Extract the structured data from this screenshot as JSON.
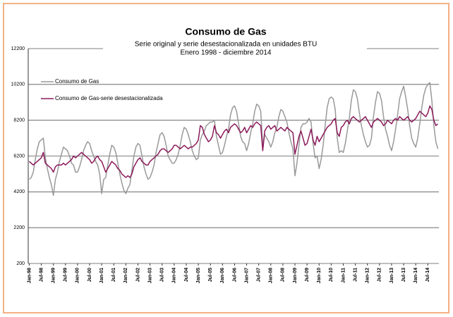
{
  "chart_data": {
    "type": "line",
    "title": "Consumo de Gas",
    "subtitle": [
      "Serie original y serie desestacionalizada en unidades BTU",
      "Enero 1998 - diciembre 2014"
    ],
    "categories": [
      "Jan-98",
      null,
      null,
      null,
      null,
      null,
      "Jul-98",
      null,
      null,
      null,
      null,
      null,
      "Jan-99",
      null,
      null,
      null,
      null,
      null,
      "Jul-99",
      null,
      null,
      null,
      null,
      null,
      "Jan-00",
      null,
      null,
      null,
      null,
      null,
      "Jul-00",
      null,
      null,
      null,
      null,
      null,
      "Jan-01",
      null,
      null,
      null,
      null,
      null,
      "Jul-01",
      null,
      null,
      null,
      null,
      null,
      "Jan-02",
      null,
      null,
      null,
      null,
      null,
      "Jul-02",
      null,
      null,
      null,
      null,
      null,
      "Jan-03",
      null,
      null,
      null,
      null,
      null,
      "Jul-03",
      null,
      null,
      null,
      null,
      null,
      "Jan-04",
      null,
      null,
      null,
      null,
      null,
      "Jul-04",
      null,
      null,
      null,
      null,
      null,
      "Jan-05",
      null,
      null,
      null,
      null,
      null,
      "Jul-05",
      null,
      null,
      null,
      null,
      null,
      "Jan-06",
      null,
      null,
      null,
      null,
      null,
      "Jul-06",
      null,
      null,
      null,
      null,
      null,
      "Jan-07",
      null,
      null,
      null,
      null,
      null,
      "Jul-07",
      null,
      null,
      null,
      null,
      null,
      "Jan-08",
      null,
      null,
      null,
      null,
      null,
      "Jul-08",
      null,
      null,
      null,
      null,
      null,
      "Jan-09",
      null,
      null,
      null,
      null,
      null,
      "Jul-09",
      null,
      null,
      null,
      null,
      null,
      "Jan-10",
      null,
      null,
      null,
      null,
      null,
      "Jul-10",
      null,
      null,
      null,
      null,
      null,
      "Jan-11",
      null,
      null,
      null,
      null,
      null,
      "Jul-11",
      null,
      null,
      null,
      null,
      null,
      "Jan-12",
      null,
      null,
      null,
      null,
      null,
      "Jul-12",
      null,
      null,
      null,
      null,
      null,
      "Jan-13",
      null,
      null,
      null,
      null,
      null,
      "Jul-13",
      null,
      null,
      null,
      null,
      null,
      "Jan-14",
      null,
      null,
      null,
      null,
      null,
      "Jul-14",
      null,
      null,
      null,
      null,
      null
    ],
    "series": [
      {
        "name": "Consumo de Gas",
        "color": "#999999",
        "values": [
          4900,
          5000,
          5300,
          6000,
          6600,
          7000,
          7100,
          7200,
          6100,
          5500,
          5000,
          4600,
          4000,
          4900,
          5300,
          5900,
          6300,
          6700,
          6600,
          6500,
          6200,
          5800,
          5700,
          5300,
          5300,
          5600,
          6000,
          6500,
          6800,
          7000,
          6900,
          6500,
          6200,
          5900,
          5700,
          5200,
          4100,
          4900,
          5000,
          5700,
          6300,
          6800,
          6700,
          6400,
          5800,
          5200,
          4700,
          4300,
          4100,
          4400,
          4600,
          5400,
          6200,
          6700,
          6900,
          6800,
          6200,
          5600,
          5200,
          4900,
          5000,
          5300,
          5700,
          6400,
          6900,
          7400,
          7500,
          7300,
          6800,
          6200,
          6000,
          5800,
          5800,
          6000,
          6300,
          6800,
          7400,
          7800,
          7700,
          7400,
          7000,
          6500,
          6200,
          6000,
          6100,
          7100,
          7400,
          7600,
          7900,
          8000,
          8100,
          8100,
          8200,
          7300,
          6800,
          6300,
          6400,
          6800,
          7300,
          7700,
          8500,
          8900,
          9000,
          8700,
          8000,
          7300,
          7000,
          6900,
          6500,
          6900,
          7500,
          8000,
          8700,
          9100,
          9000,
          8700,
          6800,
          7400,
          7200,
          7000,
          6700,
          7000,
          7500,
          7800,
          8400,
          8800,
          8700,
          8400,
          8100,
          7500,
          7000,
          6600,
          5100,
          5800,
          6800,
          7800,
          8000,
          8000,
          8100,
          8300,
          8100,
          6900,
          6100,
          6200,
          5500,
          6000,
          6800,
          7900,
          8900,
          9400,
          9500,
          9400,
          8800,
          7200,
          6400,
          6500,
          6400,
          6900,
          7600,
          8300,
          9300,
          9900,
          9800,
          9400,
          8600,
          7900,
          7400,
          7000,
          6700,
          6800,
          7200,
          8400,
          9200,
          9800,
          9700,
          9300,
          8400,
          7700,
          7300,
          6800,
          6500,
          7000,
          7700,
          8500,
          9400,
          9800,
          10100,
          9500,
          8800,
          7900,
          7200,
          6900,
          6700,
          7200,
          8000,
          8900,
          9600,
          10000,
          10200,
          10300,
          9300,
          7900,
          7000,
          6600
        ]
      },
      {
        "name": "Consumo de Gas-serie desestacionalizada",
        "color": "#8b1a5a",
        "values": [
          5900,
          5800,
          5700,
          5800,
          5900,
          6000,
          6100,
          6400,
          5800,
          5700,
          5600,
          5500,
          5300,
          5600,
          5700,
          5700,
          5700,
          5800,
          5700,
          5800,
          5900,
          6000,
          6200,
          6100,
          6200,
          6300,
          6400,
          6300,
          6200,
          6100,
          6000,
          5800,
          5900,
          6100,
          6200,
          6000,
          5900,
          5600,
          5300,
          5500,
          5700,
          5900,
          5800,
          5700,
          5500,
          5400,
          5200,
          5100,
          5000,
          5100,
          5000,
          5200,
          5600,
          5800,
          6000,
          6100,
          5900,
          5800,
          5700,
          5700,
          5900,
          6000,
          6100,
          6200,
          6300,
          6500,
          6600,
          6600,
          6500,
          6400,
          6500,
          6600,
          6800,
          6800,
          6700,
          6600,
          6700,
          6800,
          6700,
          6600,
          6700,
          6700,
          6800,
          6900,
          7100,
          7900,
          7800,
          7400,
          7200,
          7000,
          7100,
          7300,
          7900,
          7500,
          7400,
          7200,
          7400,
          7600,
          7700,
          7500,
          7800,
          7900,
          8000,
          7900,
          7700,
          7500,
          7600,
          7800,
          7500,
          7700,
          7900,
          7800,
          8000,
          8100,
          8000,
          7900,
          6500,
          7600,
          7800,
          7900,
          7700,
          7800,
          7900,
          7600,
          7700,
          7800,
          7700,
          7600,
          7800,
          7700,
          7600,
          7500,
          6300,
          6800,
          7300,
          7600,
          7200,
          6800,
          6900,
          7300,
          7700,
          7100,
          6800,
          7300,
          7000,
          7200,
          7400,
          7600,
          7800,
          7900,
          8000,
          8200,
          8300,
          7500,
          7300,
          7800,
          7900,
          8100,
          8200,
          8000,
          8300,
          8400,
          8300,
          8200,
          8100,
          8200,
          8300,
          8400,
          8200,
          8000,
          7800,
          8100,
          8200,
          8300,
          8200,
          8100,
          7900,
          8000,
          8200,
          8100,
          8000,
          8200,
          8300,
          8200,
          8400,
          8300,
          8200,
          8300,
          8400,
          8200,
          8100,
          8200,
          8300,
          8500,
          8700,
          8600,
          8500,
          8400,
          8600,
          9000,
          8800,
          8200,
          7900,
          8000
        ]
      }
    ],
    "ylim": [
      200,
      12200
    ],
    "yticks": [
      200,
      2200,
      4200,
      6200,
      8200,
      10200,
      12200
    ],
    "grid": true
  }
}
